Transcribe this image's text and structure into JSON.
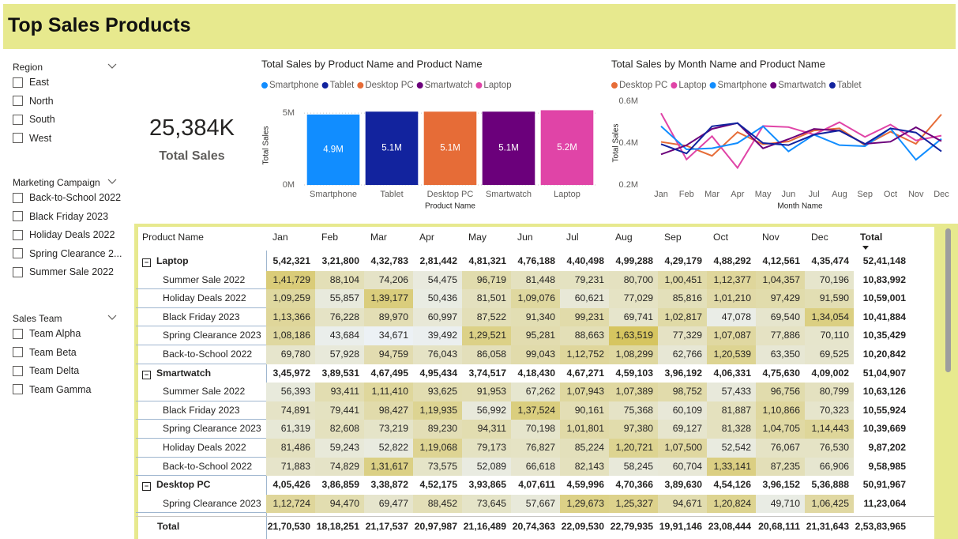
{
  "header": {
    "title": "Top Sales Products"
  },
  "slicers": [
    {
      "title": "Region",
      "items": [
        "East",
        "North",
        "South",
        "West"
      ]
    },
    {
      "title": "Marketing Campaign",
      "items": [
        "Back-to-School 2022",
        "Black Friday 2023",
        "Holiday Deals 2022",
        "Spring Clearance 2...",
        "Summer Sale 2022"
      ]
    },
    {
      "title": "Sales Team",
      "items": [
        "Team Alpha",
        "Team Beta",
        "Team Delta",
        "Team Gamma"
      ]
    }
  ],
  "kpi": {
    "value": "25,384K",
    "label": "Total Sales"
  },
  "chart_data": [
    {
      "type": "bar",
      "title": "Total Sales by Product Name and Product Name",
      "x_label": "Product Name",
      "y_label": "Total Sales",
      "categories": [
        "Smartphone",
        "Tablet",
        "Desktop PC",
        "Smartwatch",
        "Laptop"
      ],
      "values": [
        4900000,
        5100000,
        5100000,
        5100000,
        5200000
      ],
      "value_labels": [
        "4.9M",
        "5.1M",
        "5.1M",
        "5.1M",
        "5.2M"
      ],
      "colors": [
        "#118dff",
        "#12239e",
        "#e66c37",
        "#6b007b",
        "#e044a7"
      ],
      "ylim": [
        0,
        5500000
      ],
      "yticks": [
        {
          "value": 0,
          "label": "0M"
        },
        {
          "value": 5000000,
          "label": "5M"
        }
      ],
      "grid": true
    },
    {
      "type": "line",
      "title": "Total Sales by Month Name and Product Name",
      "x_label": "Month Name",
      "y_label": "Total Sales",
      "categories": [
        "Jan",
        "Feb",
        "Mar",
        "Apr",
        "May",
        "Jun",
        "Jul",
        "Aug",
        "Sep",
        "Oct",
        "Nov",
        "Dec"
      ],
      "series": [
        {
          "name": "Desktop PC",
          "color": "#e66c37",
          "values": [
            405426,
            386859,
            338872,
            452175,
            393865,
            407611,
            459996,
            470366,
            389630,
            454126,
            396152,
            536888
          ]
        },
        {
          "name": "Laptop",
          "color": "#e044a7",
          "values": [
            542321,
            321800,
            432783,
            281442,
            481321,
            476188,
            440498,
            499288,
            429179,
            488292,
            412561,
            435474
          ]
        },
        {
          "name": "Smartphone",
          "color": "#118dff",
          "values": [
            480000,
            370000,
            375000,
            400000,
            480000,
            360000,
            440000,
            390000,
            385000,
            470000,
            320000,
            420000
          ]
        },
        {
          "name": "Smartwatch",
          "color": "#6b007b",
          "values": [
            345972,
            389531,
            467495,
            495434,
            374517,
            418430,
            467271,
            459103,
            396192,
            406331,
            475630,
            409002
          ]
        },
        {
          "name": "Tablet",
          "color": "#12239e",
          "values": [
            395000,
            350000,
            480000,
            495000,
            400000,
            390000,
            440000,
            460000,
            395000,
            470000,
            450000,
            360000
          ]
        }
      ],
      "ylim": [
        200000,
        600000
      ],
      "yticks": [
        {
          "value": 200000,
          "label": "0.2M"
        },
        {
          "value": 400000,
          "label": "0.4M"
        },
        {
          "value": 600000,
          "label": "0.6M"
        }
      ],
      "grid": false
    }
  ],
  "table": {
    "columns": [
      "Product Name",
      "Jan",
      "Feb",
      "Mar",
      "Apr",
      "May",
      "Jun",
      "Jul",
      "Aug",
      "Sep",
      "Oct",
      "Nov",
      "Dec",
      "Total"
    ],
    "rows": [
      {
        "label": "Laptop",
        "group": true,
        "values": [
          "5,42,321",
          "3,21,800",
          "4,32,783",
          "2,81,442",
          "4,81,321",
          "4,76,188",
          "4,40,498",
          "4,99,288",
          "4,29,179",
          "4,88,292",
          "4,12,561",
          "4,35,474",
          "52,41,148"
        ]
      },
      {
        "label": "Summer Sale 2022",
        "group": false,
        "values": [
          "1,41,729",
          "88,104",
          "74,206",
          "54,475",
          "96,719",
          "81,448",
          "79,231",
          "80,700",
          "1,00,451",
          "1,12,377",
          "1,04,357",
          "70,196",
          "10,83,992"
        ]
      },
      {
        "label": "Holiday Deals 2022",
        "group": false,
        "values": [
          "1,09,259",
          "55,857",
          "1,39,177",
          "50,436",
          "81,501",
          "1,09,076",
          "60,621",
          "77,029",
          "85,816",
          "1,01,210",
          "97,429",
          "91,590",
          "10,59,001"
        ]
      },
      {
        "label": "Black Friday 2023",
        "group": false,
        "values": [
          "1,13,366",
          "76,228",
          "89,970",
          "60,997",
          "87,522",
          "91,340",
          "99,231",
          "69,741",
          "1,02,817",
          "47,078",
          "69,540",
          "1,34,054",
          "10,41,884"
        ]
      },
      {
        "label": "Spring Clearance 2023",
        "group": false,
        "values": [
          "1,08,186",
          "43,684",
          "34,671",
          "39,492",
          "1,29,521",
          "95,281",
          "88,663",
          "1,63,519",
          "77,329",
          "1,07,087",
          "77,886",
          "70,110",
          "10,35,429"
        ]
      },
      {
        "label": "Back-to-School 2022",
        "group": false,
        "values": [
          "69,780",
          "57,928",
          "94,759",
          "76,043",
          "86,058",
          "99,043",
          "1,12,752",
          "1,08,299",
          "62,766",
          "1,20,539",
          "63,350",
          "69,525",
          "10,20,842"
        ]
      },
      {
        "label": "Smartwatch",
        "group": true,
        "values": [
          "3,45,972",
          "3,89,531",
          "4,67,495",
          "4,95,434",
          "3,74,517",
          "4,18,430",
          "4,67,271",
          "4,59,103",
          "3,96,192",
          "4,06,331",
          "4,75,630",
          "4,09,002",
          "51,04,907"
        ]
      },
      {
        "label": "Summer Sale 2022",
        "group": false,
        "values": [
          "56,393",
          "93,411",
          "1,11,410",
          "93,625",
          "91,953",
          "67,262",
          "1,07,943",
          "1,07,389",
          "98,752",
          "57,433",
          "96,756",
          "80,799",
          "10,63,126"
        ]
      },
      {
        "label": "Black Friday 2023",
        "group": false,
        "values": [
          "74,891",
          "79,441",
          "98,427",
          "1,19,935",
          "56,992",
          "1,37,524",
          "90,161",
          "75,368",
          "60,109",
          "81,887",
          "1,10,866",
          "70,323",
          "10,55,924"
        ]
      },
      {
        "label": "Spring Clearance 2023",
        "group": false,
        "values": [
          "61,319",
          "82,608",
          "73,219",
          "89,230",
          "94,311",
          "70,198",
          "1,01,801",
          "97,380",
          "69,127",
          "81,328",
          "1,04,705",
          "1,14,443",
          "10,39,669"
        ]
      },
      {
        "label": "Holiday Deals 2022",
        "group": false,
        "values": [
          "81,486",
          "59,243",
          "52,822",
          "1,19,068",
          "79,173",
          "76,827",
          "85,224",
          "1,20,721",
          "1,07,500",
          "52,542",
          "76,067",
          "76,530",
          "9,87,202"
        ]
      },
      {
        "label": "Back-to-School 2022",
        "group": false,
        "values": [
          "71,883",
          "74,829",
          "1,31,617",
          "73,575",
          "52,089",
          "66,618",
          "82,143",
          "58,245",
          "60,704",
          "1,33,141",
          "87,235",
          "66,906",
          "9,58,985"
        ]
      },
      {
        "label": "Desktop PC",
        "group": true,
        "values": [
          "4,05,426",
          "3,86,859",
          "3,38,872",
          "4,52,175",
          "3,93,865",
          "4,07,611",
          "4,59,996",
          "4,70,366",
          "3,89,630",
          "4,54,126",
          "3,96,152",
          "5,36,888",
          "50,91,967"
        ]
      },
      {
        "label": "Spring Clearance 2023",
        "group": false,
        "values": [
          "1,12,724",
          "94,470",
          "69,477",
          "88,452",
          "73,645",
          "57,667",
          "1,29,673",
          "1,25,327",
          "94,671",
          "1,20,824",
          "49,710",
          "1,06,425",
          "11,23,064"
        ]
      }
    ],
    "total": {
      "label": "Total",
      "values": [
        "21,70,530",
        "18,18,251",
        "21,17,537",
        "20,97,987",
        "21,16,489",
        "20,74,363",
        "22,09,530",
        "22,79,935",
        "19,91,146",
        "23,08,444",
        "20,68,111",
        "21,31,643",
        "2,53,83,965"
      ]
    }
  }
}
